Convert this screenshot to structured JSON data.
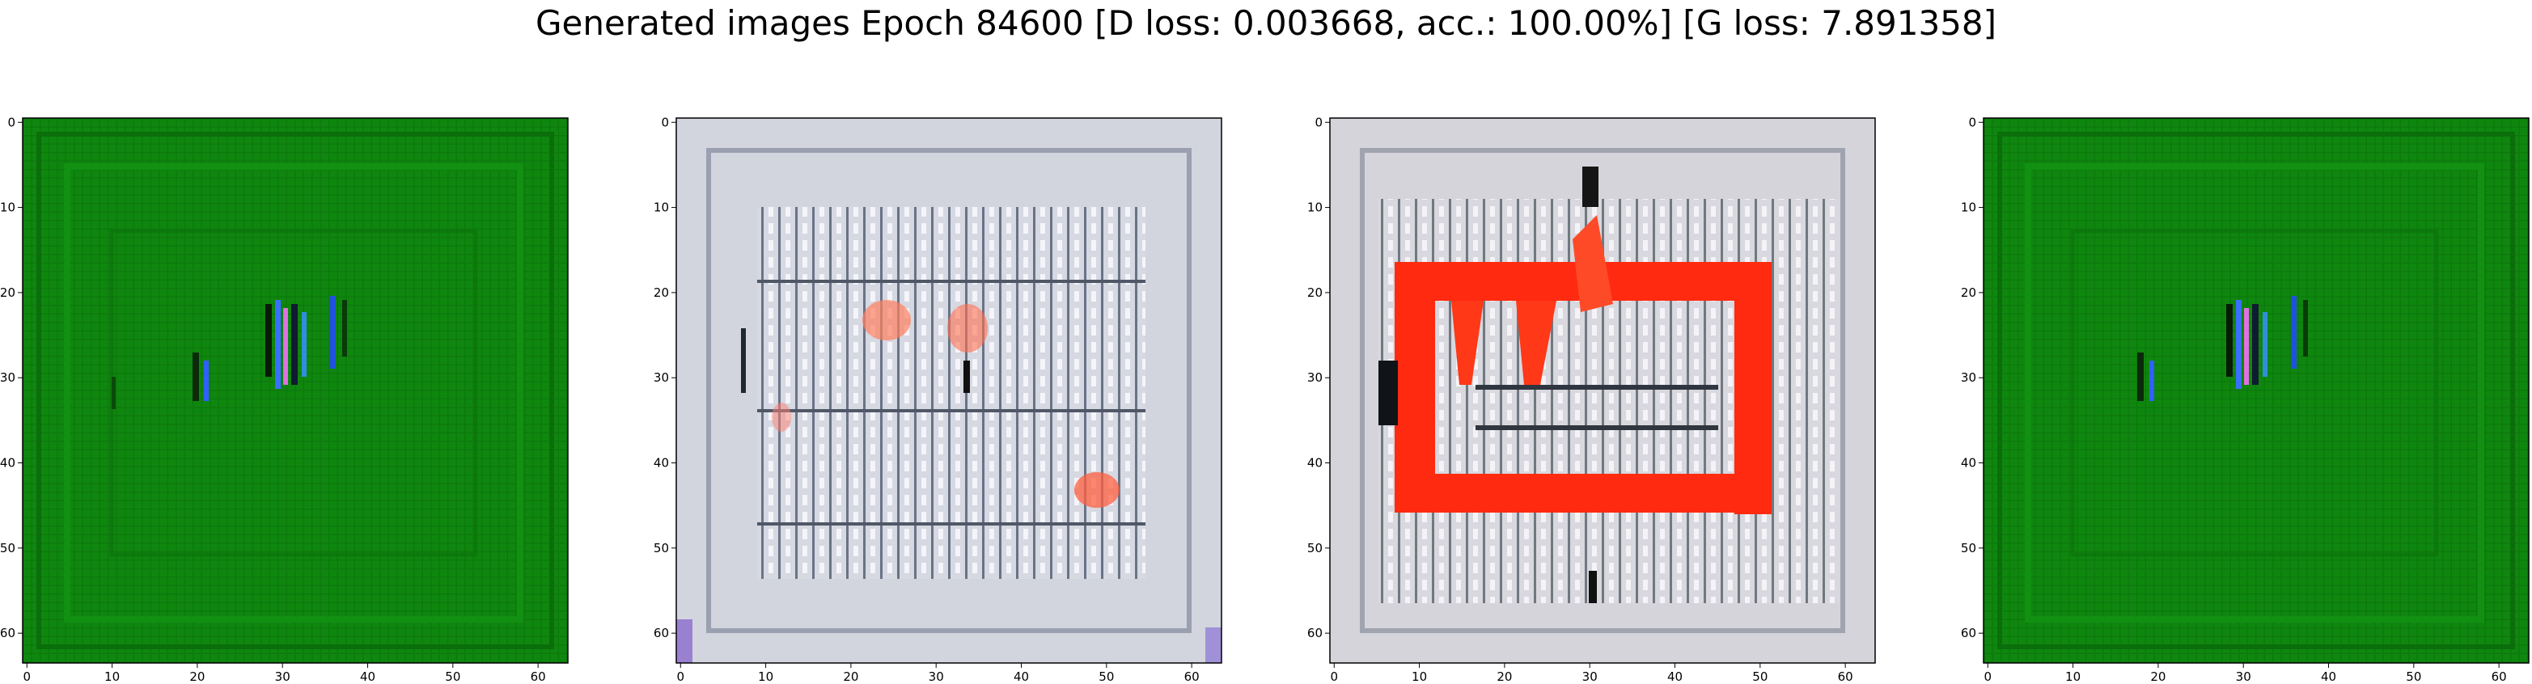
{
  "figure": {
    "title": "Generated images Epoch 84600 [D loss: 0.003668, acc.: 100.00%] [G loss: 7.891358]"
  },
  "axis_ticks": {
    "x": [
      "0",
      "10",
      "20",
      "30",
      "40",
      "50",
      "60"
    ],
    "y": [
      "0",
      "10",
      "20",
      "30",
      "40",
      "50",
      "60"
    ]
  },
  "panels": [
    {
      "id": "sample-1",
      "content": "green texture with a small cluster of blue/magenta/black vertical streaks near the center",
      "dominant_color": "#118a11"
    },
    {
      "id": "sample-2",
      "content": "pale grey/white grid-like pattern with faint orange blotches",
      "dominant_color": "#cfd2dc"
    },
    {
      "id": "sample-3",
      "content": "grey-white grid with a large bright red rectangular frame in the middle",
      "dominant_color": "#ff2a12"
    },
    {
      "id": "sample-4",
      "content": "green texture with a small cluster of blue/magenta/black vertical streaks near the center",
      "dominant_color": "#118a11"
    }
  ],
  "palette": {
    "green_bg": "#0f870f",
    "green_dark": "#0a6b0a",
    "grey_bg": "#d6d8e2",
    "red_frame": "#ff2a10",
    "streak_blue": "#3060ff",
    "streak_magenta": "#e070e0"
  }
}
